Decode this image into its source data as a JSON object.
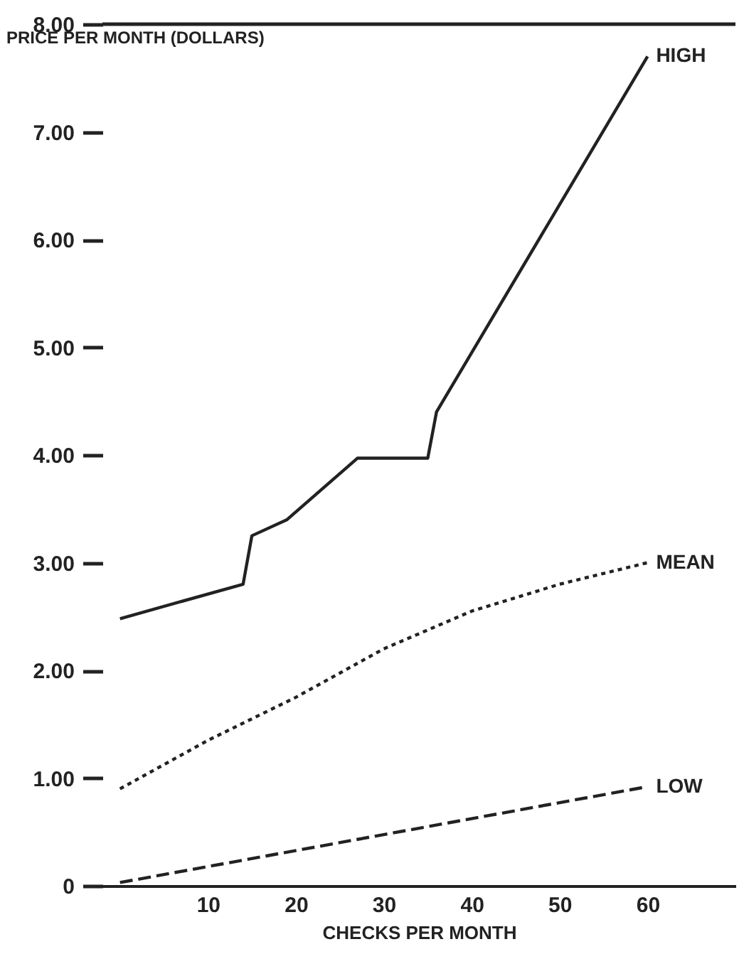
{
  "chart_data": {
    "type": "line",
    "xlabel": "CHECKS PER MONTH",
    "ylabel": "PRICE PER MONTH (DOLLARS)",
    "xlim": [
      -2,
      70
    ],
    "ylim": [
      0,
      8
    ],
    "xticks": [
      10,
      20,
      30,
      40,
      50,
      60
    ],
    "yticks": [
      {
        "value": 0,
        "label": "0"
      },
      {
        "value": 1,
        "label": "1.00"
      },
      {
        "value": 2,
        "label": "2.00"
      },
      {
        "value": 3,
        "label": "3.00"
      },
      {
        "value": 4,
        "label": "4.00"
      },
      {
        "value": 5,
        "label": "5.00"
      },
      {
        "value": 6,
        "label": "6.00"
      },
      {
        "value": 7,
        "label": "7.00"
      },
      {
        "value": 8,
        "label": "8.00"
      }
    ],
    "grid": false,
    "legend": false,
    "marker": "none",
    "series": [
      {
        "name": "HIGH",
        "color": "#222222",
        "line_style": "solid",
        "x": [
          0,
          14,
          15,
          19,
          27,
          35,
          36,
          60
        ],
        "values": [
          2.48,
          2.8,
          3.25,
          3.4,
          3.97,
          3.97,
          4.4,
          7.7
        ]
      },
      {
        "name": "MEAN",
        "color": "#222222",
        "line_style": "dotted",
        "x": [
          0,
          10,
          20,
          30,
          40,
          50,
          60
        ],
        "values": [
          0.9,
          1.35,
          1.75,
          2.2,
          2.55,
          2.8,
          3.0
        ]
      },
      {
        "name": "LOW",
        "color": "#222222",
        "line_style": "dashed",
        "x": [
          0,
          60
        ],
        "values": [
          0.03,
          0.92
        ]
      }
    ]
  }
}
